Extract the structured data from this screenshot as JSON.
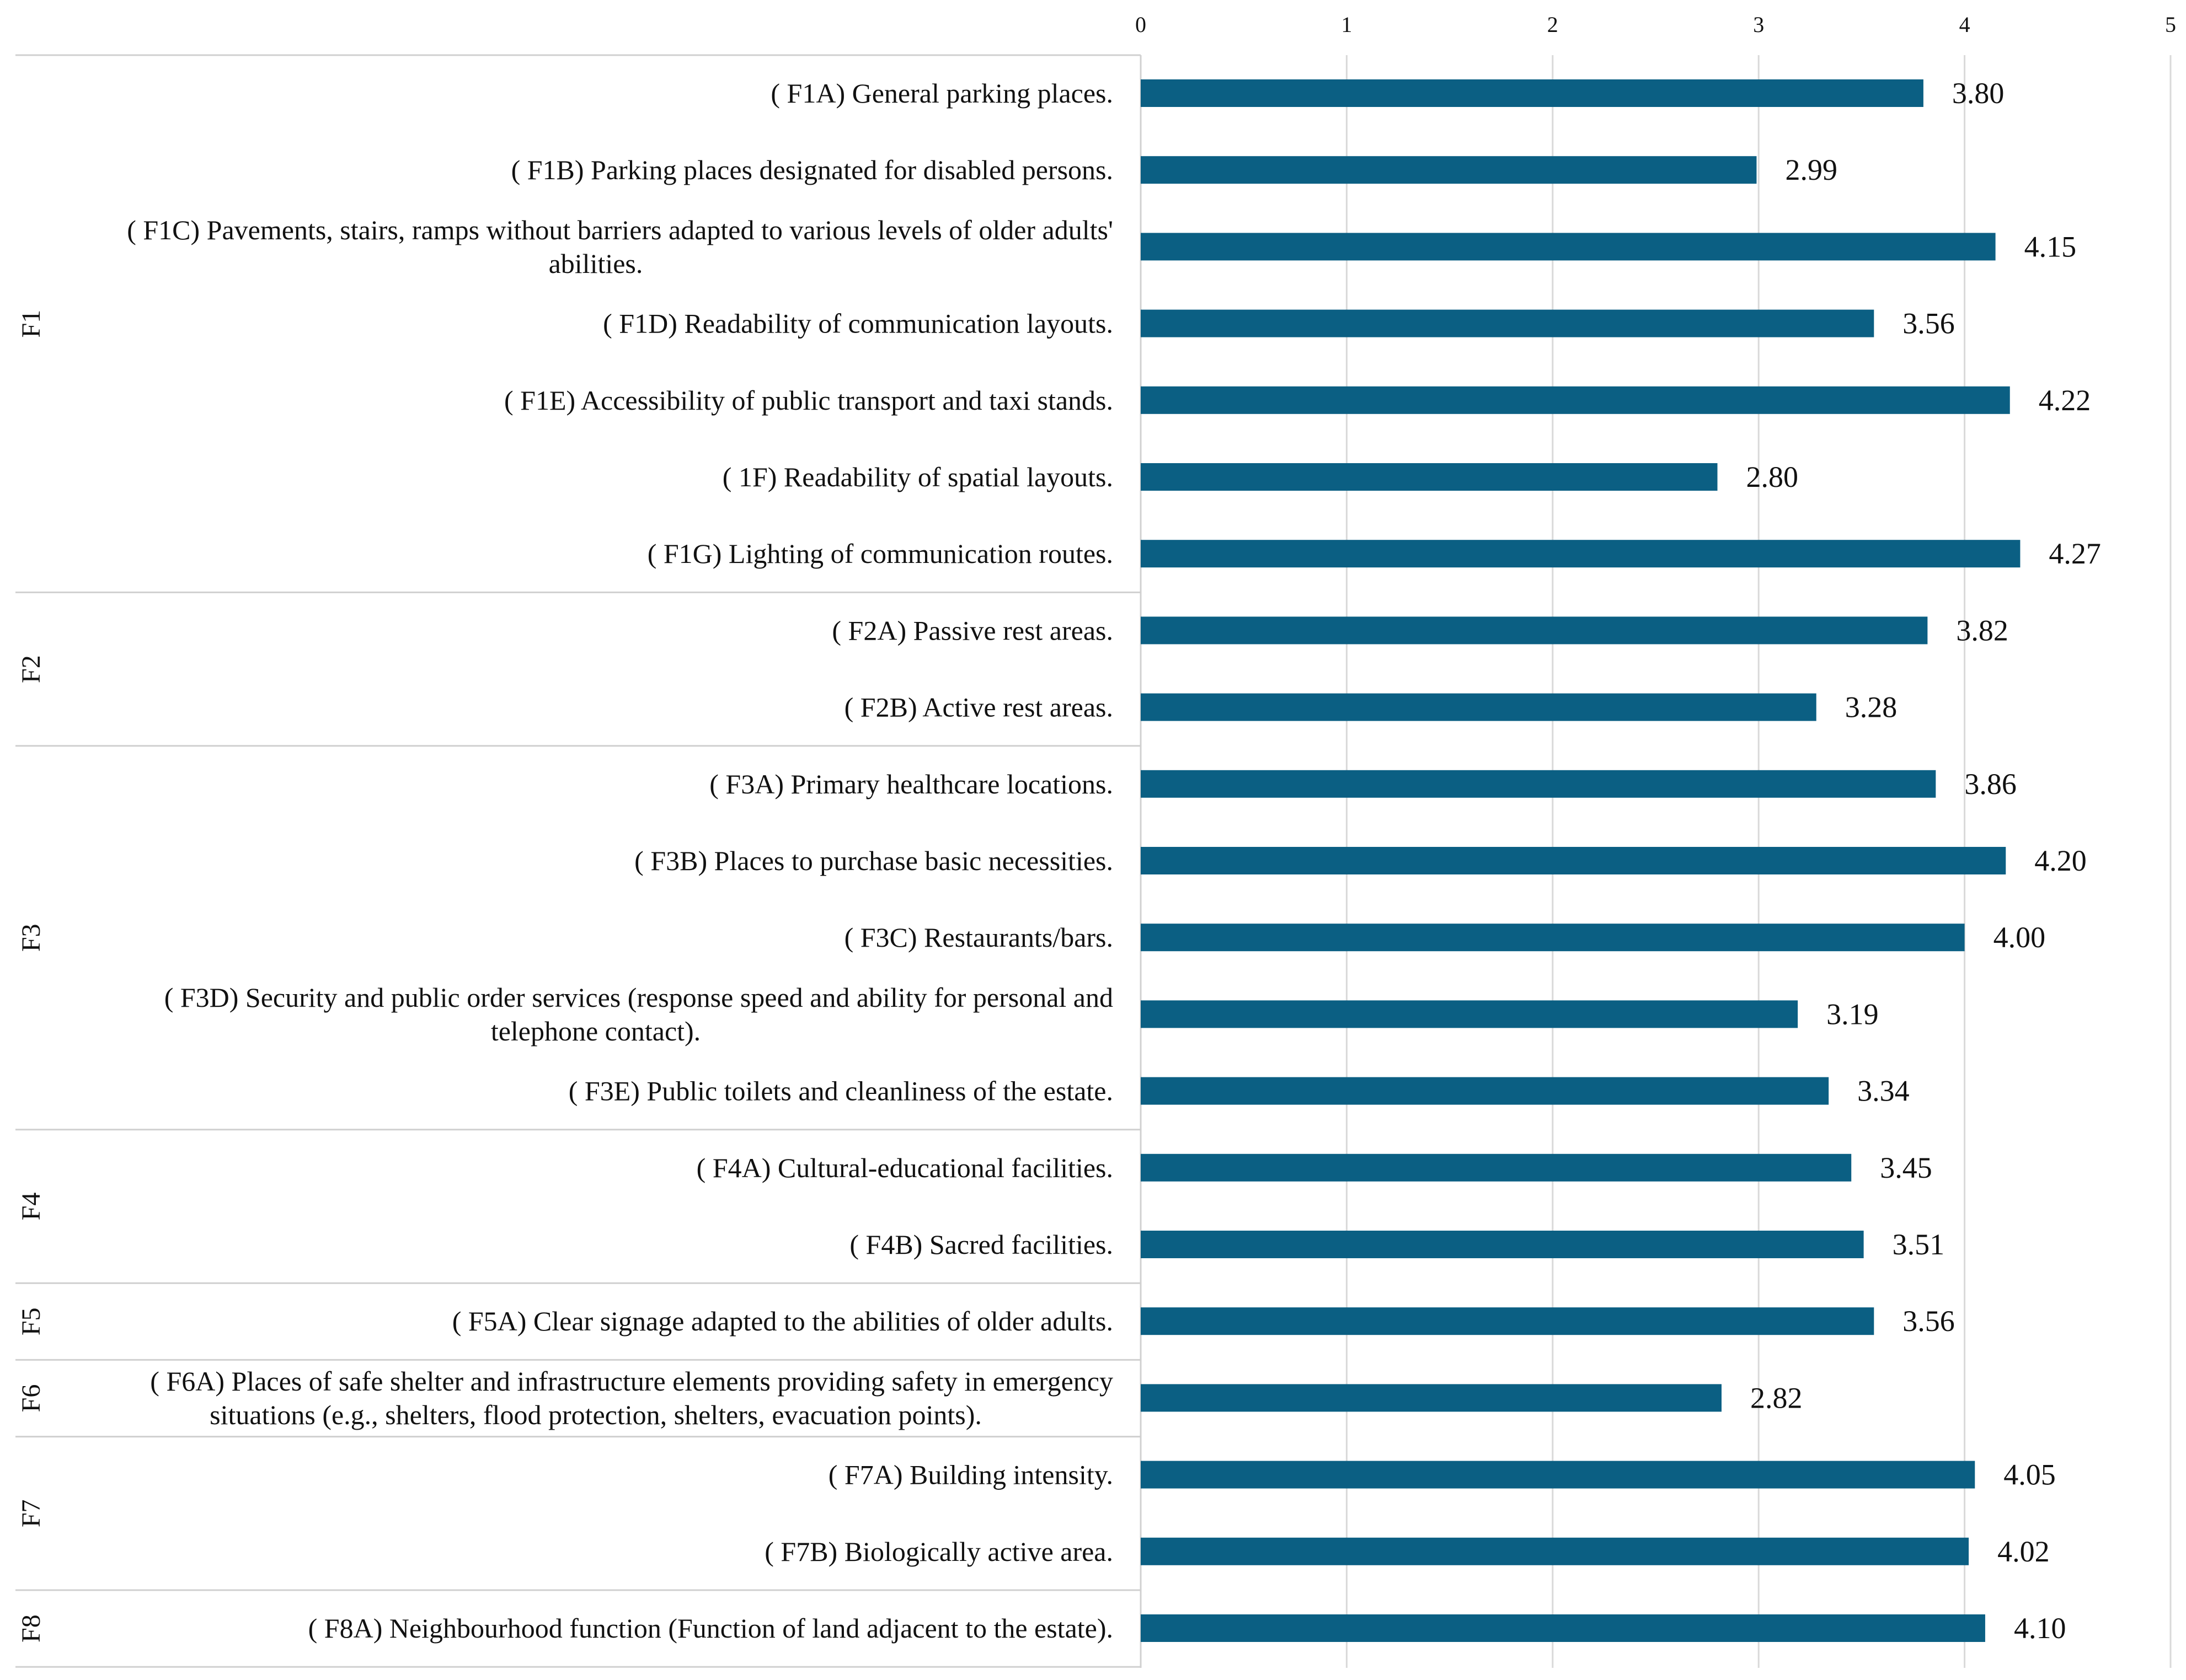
{
  "chart_data": {
    "type": "bar",
    "orientation": "horizontal",
    "title": "",
    "xlabel": "",
    "ylabel": "",
    "xlim": [
      0,
      5
    ],
    "x_ticks": [
      "0",
      "1",
      "2",
      "3",
      "4",
      "5"
    ],
    "grid": true,
    "bar_color": "#0b5f83",
    "groups": [
      {
        "label": "F1",
        "items": [
          {
            "label_lines": [
              "( F1A) General parking places."
            ],
            "value": 3.8,
            "value_label": "3.80"
          },
          {
            "label_lines": [
              "( F1B) Parking places designated for disabled persons."
            ],
            "value": 2.99,
            "value_label": "2.99"
          },
          {
            "label_lines": [
              "( F1C) Pavements, stairs, ramps without barriers adapted to various levels of older adults'",
              "abilities."
            ],
            "value": 4.15,
            "value_label": "4.15"
          },
          {
            "label_lines": [
              "( F1D) Readability of communication layouts."
            ],
            "value": 3.56,
            "value_label": "3.56"
          },
          {
            "label_lines": [
              "( F1E) Accessibility of public transport and taxi stands."
            ],
            "value": 4.22,
            "value_label": "4.22"
          },
          {
            "label_lines": [
              "( 1F) Readability of spatial layouts."
            ],
            "value": 2.8,
            "value_label": "2.80"
          },
          {
            "label_lines": [
              "( F1G) Lighting of communication routes."
            ],
            "value": 4.27,
            "value_label": "4.27"
          }
        ]
      },
      {
        "label": "F2",
        "items": [
          {
            "label_lines": [
              "( F2A) Passive rest areas."
            ],
            "value": 3.82,
            "value_label": "3.82"
          },
          {
            "label_lines": [
              "( F2B) Active rest areas."
            ],
            "value": 3.28,
            "value_label": "3.28"
          }
        ]
      },
      {
        "label": "F3",
        "items": [
          {
            "label_lines": [
              "( F3A) Primary healthcare locations."
            ],
            "value": 3.86,
            "value_label": "3.86"
          },
          {
            "label_lines": [
              "( F3B) Places to purchase basic necessities."
            ],
            "value": 4.2,
            "value_label": "4.20"
          },
          {
            "label_lines": [
              "( F3C) Restaurants/bars."
            ],
            "value": 4.0,
            "value_label": "4.00"
          },
          {
            "label_lines": [
              "( F3D) Security and public order services (response speed and ability for personal and",
              "telephone contact)."
            ],
            "value": 3.19,
            "value_label": "3.19"
          },
          {
            "label_lines": [
              "( F3E) Public toilets and cleanliness of the estate."
            ],
            "value": 3.34,
            "value_label": "3.34"
          }
        ]
      },
      {
        "label": "F4",
        "items": [
          {
            "label_lines": [
              "( F4A) Cultural-educational facilities."
            ],
            "value": 3.45,
            "value_label": "3.45"
          },
          {
            "label_lines": [
              "( F4B) Sacred facilities."
            ],
            "value": 3.51,
            "value_label": "3.51"
          }
        ]
      },
      {
        "label": "F5",
        "items": [
          {
            "label_lines": [
              "( F5A) Clear signage adapted to the abilities of older adults."
            ],
            "value": 3.56,
            "value_label": "3.56"
          }
        ]
      },
      {
        "label": "F6",
        "items": [
          {
            "label_lines": [
              "( F6A) Places of safe shelter and infrastructure elements providing safety in emergency",
              "situations (e.g., shelters, flood protection, shelters, evacuation points)."
            ],
            "value": 2.82,
            "value_label": "2.82"
          }
        ]
      },
      {
        "label": "F7",
        "items": [
          {
            "label_lines": [
              "( F7A) Building intensity."
            ],
            "value": 4.05,
            "value_label": "4.05"
          },
          {
            "label_lines": [
              "( F7B) Biologically active area."
            ],
            "value": 4.02,
            "value_label": "4.02"
          }
        ]
      },
      {
        "label": "F8",
        "items": [
          {
            "label_lines": [
              "( F8A) Neighbourhood function (Function of land adjacent to the estate)."
            ],
            "value": 4.1,
            "value_label": "4.10"
          }
        ]
      }
    ]
  }
}
